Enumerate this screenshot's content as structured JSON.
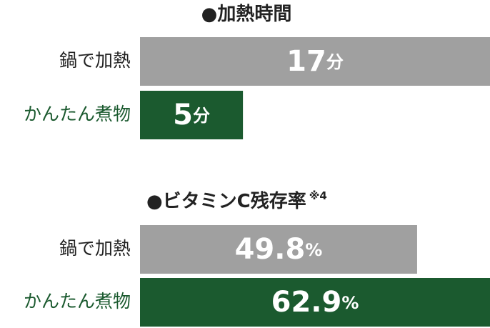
{
  "chart_data": [
    {
      "type": "bar",
      "title": "●加熱時間",
      "categories": [
        "鍋で加熱",
        "かんたん煮物"
      ],
      "values": [
        17,
        5
      ],
      "value_labels": [
        "17分",
        "5分"
      ],
      "colors": [
        "#a0a0a0",
        "#1b5a2f"
      ],
      "label_colors": [
        "#222222",
        "#1b5a2f"
      ]
    },
    {
      "type": "bar",
      "title": "●ビタミンC残存率",
      "note": "※4",
      "categories": [
        "鍋で加熱",
        "かんたん煮物"
      ],
      "values": [
        49.8,
        62.9
      ],
      "value_labels": [
        "49.8%",
        "62.9%"
      ],
      "colors": [
        "#a0a0a0",
        "#1b5a2f"
      ],
      "label_colors": [
        "#222222",
        "#1b5a2f"
      ]
    }
  ]
}
